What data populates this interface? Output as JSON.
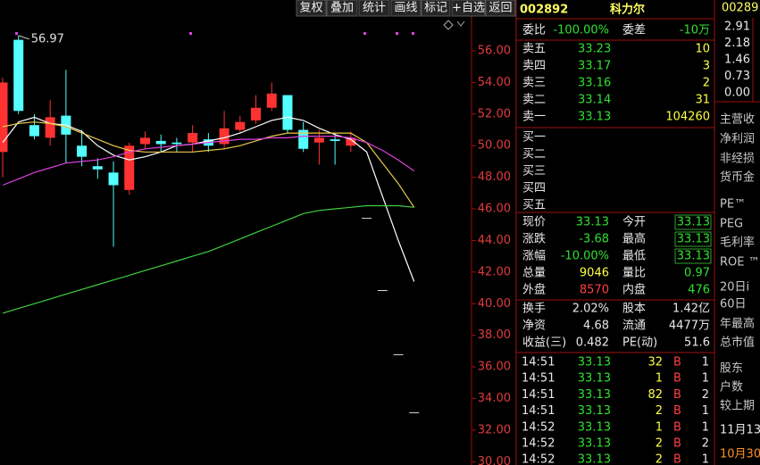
{
  "toolbar": [
    "复权",
    "叠加",
    "统计",
    "画线",
    "标记",
    "+自选",
    "返回"
  ],
  "chart_data": {
    "type": "candlestick",
    "high_mark": 56.97,
    "open": [
      49.6,
      56.7,
      51.3,
      50.5,
      51.9,
      50.0,
      48.7,
      48.3,
      47.2,
      50.1,
      50.3,
      50.2,
      50.2,
      50.4,
      50.1,
      51.0,
      51.6,
      52.4,
      53.2,
      51.0,
      50.2,
      50.4,
      50.0,
      45.43,
      40.86,
      36.8,
      33.13
    ],
    "high": [
      54.3,
      56.97,
      52.0,
      52.9,
      54.8,
      51.0,
      49.2,
      49.0,
      50.2,
      50.9,
      50.7,
      50.5,
      51.3,
      50.8,
      52.2,
      51.9,
      53.2,
      54.0,
      53.2,
      51.5,
      51.0,
      50.8,
      50.9,
      45.43,
      40.86,
      36.8,
      33.13
    ],
    "low": [
      48.0,
      52.0,
      50.4,
      50.0,
      48.9,
      48.7,
      47.9,
      43.6,
      46.9,
      49.8,
      49.6,
      49.6,
      49.6,
      49.6,
      49.8,
      50.8,
      51.4,
      52.2,
      50.8,
      49.6,
      48.8,
      48.8,
      49.6,
      45.43,
      40.86,
      36.8,
      33.13
    ],
    "close": [
      54.0,
      52.2,
      50.6,
      51.8,
      50.7,
      49.3,
      48.5,
      47.5,
      50.0,
      50.5,
      50.1,
      50.1,
      50.8,
      50.0,
      51.1,
      51.5,
      52.4,
      53.3,
      51.0,
      49.8,
      50.5,
      50.3,
      50.5,
      45.43,
      40.86,
      36.8,
      33.13
    ],
    "up_color": "#ff3232",
    "down_color": "#54ffff",
    "flat_color": "#e0e0e0",
    "series": [
      {
        "color": "#ffffff",
        "values": [
          50.2,
          51.5,
          51.8,
          51.4,
          51.3,
          50.9,
          50.0,
          49.4,
          49.1,
          49.3,
          49.6,
          50.0,
          50.1,
          50.3,
          50.5,
          50.8,
          51.2,
          51.6,
          51.8,
          51.6,
          51.1,
          50.7,
          50.4,
          49.6,
          46.8,
          44.0,
          41.4
        ]
      },
      {
        "color": "#e8c848",
        "values": [
          51.2,
          51.4,
          51.5,
          51.4,
          51.2,
          50.8,
          50.4,
          50.0,
          49.7,
          49.6,
          49.6,
          49.6,
          49.6,
          49.7,
          49.8,
          50.0,
          50.3,
          50.6,
          50.8,
          50.8,
          50.8,
          50.8,
          50.8,
          50.2,
          48.9,
          47.6,
          46.1
        ]
      },
      {
        "color": "#e040e0",
        "values": [
          47.5,
          47.9,
          48.3,
          48.6,
          48.9,
          49.0,
          49.1,
          49.3,
          49.6,
          49.8,
          49.9,
          50.0,
          50.1,
          50.2,
          50.3,
          50.4,
          50.4,
          50.5,
          50.5,
          50.6,
          50.6,
          50.6,
          50.5,
          50.2,
          49.7,
          49.1,
          48.4
        ]
      },
      {
        "color": "#40d040",
        "values": [
          39.4,
          39.7,
          40.0,
          40.3,
          40.6,
          40.9,
          41.2,
          41.5,
          41.8,
          42.1,
          42.4,
          42.7,
          43.0,
          43.3,
          43.7,
          44.1,
          44.5,
          44.9,
          45.3,
          45.7,
          45.9,
          46.0,
          46.1,
          46.2,
          46.2,
          46.2,
          46.1
        ]
      }
    ],
    "ylim": [
      29.79,
      59.22
    ],
    "yticks": [
      {
        "value": 30,
        "label": "30.00"
      },
      {
        "value": 32,
        "label": "32.00"
      },
      {
        "value": 34,
        "label": "34.00"
      },
      {
        "value": 36,
        "label": "36.00"
      },
      {
        "value": 38,
        "label": "38.00"
      },
      {
        "value": 40,
        "label": "40.00"
      },
      {
        "value": 42,
        "label": "42.00"
      },
      {
        "value": 44,
        "label": "44.00"
      },
      {
        "value": 46,
        "label": "46.00"
      },
      {
        "value": 48,
        "label": "48.00"
      },
      {
        "value": 50,
        "label": "50.00"
      },
      {
        "value": 52,
        "label": "52.00"
      },
      {
        "value": 54,
        "label": "54.00"
      },
      {
        "value": 56,
        "label": "56.00"
      }
    ]
  },
  "quote": {
    "code": "002892",
    "name": "科力尔",
    "ratio": [
      "委比",
      "-100.00%",
      "委差",
      "-10万"
    ],
    "asks": [
      [
        "卖五",
        "33.23",
        "10"
      ],
      [
        "卖四",
        "33.17",
        "3"
      ],
      [
        "卖三",
        "33.16",
        "2"
      ],
      [
        "卖二",
        "33.14",
        "31"
      ],
      [
        "卖一",
        "33.13",
        "104260"
      ]
    ],
    "bids": [
      "买一",
      "买二",
      "买三",
      "买四",
      "买五"
    ],
    "stats": [
      [
        "现价",
        "33.13",
        "今开",
        "33.13"
      ],
      [
        "涨跌",
        "-3.68",
        "最高",
        "33.13"
      ],
      [
        "涨幅",
        "-10.00%",
        "最低",
        "33.13"
      ],
      [
        "总量",
        "9046",
        "量比",
        "0.97"
      ],
      [
        "外盘",
        "8570",
        "内盘",
        "476"
      ]
    ],
    "info": [
      [
        "换手",
        "2.02%",
        "股本",
        "1.42亿"
      ],
      [
        "净资",
        "4.68",
        "流通",
        "4477万"
      ],
      [
        "收益(三)",
        "0.482",
        "PE(动)",
        "51.6"
      ]
    ],
    "trades": [
      [
        "14:51",
        "33.13",
        "32",
        "B",
        "1"
      ],
      [
        "14:51",
        "33.13",
        "1",
        "B",
        "1"
      ],
      [
        "14:51",
        "33.13",
        "82",
        "B",
        "2"
      ],
      [
        "14:51",
        "33.13",
        "2",
        "B",
        "1"
      ],
      [
        "14:52",
        "33.13",
        "1",
        "B",
        "1"
      ],
      [
        "14:52",
        "33.13",
        "2",
        "B",
        "2"
      ],
      [
        "14:52",
        "33.13",
        "2",
        "B",
        "1"
      ]
    ]
  },
  "side": {
    "code": "00289",
    "ticks": [
      "2.91",
      "2.18",
      "1.46",
      "0.73",
      "0.00"
    ],
    "labels": [
      "主营收",
      "净利润",
      "非经损",
      "货币金",
      "PE™",
      "PEG",
      "毛利率",
      "ROE ™",
      "20日i",
      "60日",
      "年最高",
      "总市值",
      "股东",
      "户数",
      "较上期",
      "11月13",
      "10月30"
    ]
  }
}
